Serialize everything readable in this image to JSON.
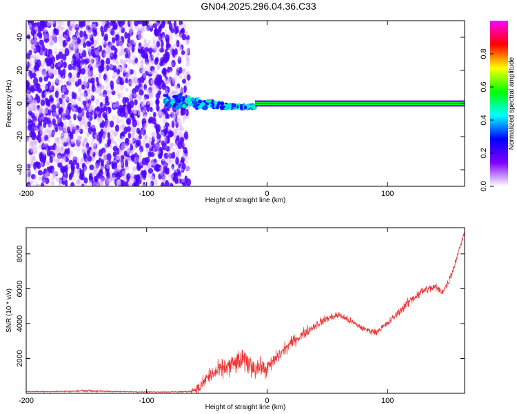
{
  "title": "GN04.2025.296.04.36.C33",
  "chart_data": [
    {
      "type": "heatmap",
      "id": "spectrogram",
      "xlabel": "Height of straight line (km)",
      "ylabel": "Frequency (Hz)",
      "xlim": [
        -200,
        164
      ],
      "ylim": [
        -50,
        50
      ],
      "xticks": [
        -200,
        -100,
        0,
        100
      ],
      "yticks": [
        -40,
        -20,
        0,
        20,
        40
      ],
      "colorbar": {
        "label": "Normalized spectral amplitude",
        "range": [
          0,
          1
        ],
        "ticks": [
          0.0,
          0.2,
          0.4,
          0.6,
          0.8
        ],
        "colormap": [
          "#ffffff",
          "#8000ff",
          "#0000ff",
          "#00ffff",
          "#00ff00",
          "#ffff00",
          "#ff0000",
          "#ff00ff"
        ]
      },
      "regions": [
        {
          "x": [
            -200,
            -65
          ],
          "freq": [
            -50,
            50
          ],
          "amplitude": [
            0.05,
            0.2
          ],
          "note": "noise"
        },
        {
          "x": [
            -85,
            -10
          ],
          "freq": [
            -3,
            6
          ],
          "amplitude": [
            0.2,
            0.5
          ]
        },
        {
          "x": [
            -10,
            164
          ],
          "freq": [
            0,
            0
          ],
          "amplitude": [
            0.9,
            1.0
          ]
        }
      ]
    },
    {
      "type": "line",
      "id": "snr",
      "xlabel": "Height of straight line (km)",
      "ylabel": "SNR (10 * v/v)",
      "xlim": [
        -200,
        164
      ],
      "ylim": [
        0,
        9500
      ],
      "xticks": [
        -200,
        -100,
        0,
        100
      ],
      "yticks": [
        2000,
        4000,
        6000,
        8000
      ],
      "color": "#ee3333",
      "series": [
        {
          "x": [
            -200,
            -180,
            -160,
            -150,
            -140,
            -120,
            -100,
            -80,
            -65,
            -56,
            -50,
            -40,
            -30,
            -20,
            -10,
            0,
            10,
            20,
            30,
            40,
            50,
            60,
            70,
            80,
            90,
            100,
            110,
            120,
            130,
            140,
            145,
            150,
            155,
            160,
            164
          ],
          "y": [
            100,
            100,
            120,
            150,
            120,
            100,
            80,
            80,
            100,
            300,
            900,
            1300,
            1600,
            1900,
            1500,
            1400,
            2200,
            2900,
            3400,
            3900,
            4300,
            4500,
            4100,
            3700,
            3500,
            4000,
            4700,
            5400,
            5900,
            6100,
            5800,
            6300,
            7200,
            8400,
            9200
          ],
          "noise": [
            40,
            40,
            60,
            80,
            60,
            40,
            40,
            40,
            60,
            500,
            700,
            800,
            900,
            1000,
            900,
            700,
            600,
            500,
            450,
            400,
            350,
            300,
            300,
            250,
            250,
            300,
            350,
            400,
            400,
            350,
            300,
            300,
            300,
            300,
            200
          ]
        }
      ]
    }
  ]
}
